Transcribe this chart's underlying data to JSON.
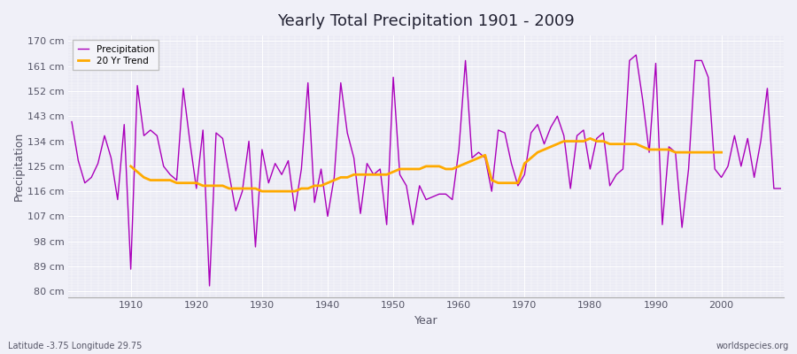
{
  "title": "Yearly Total Precipitation 1901 - 2009",
  "xlabel": "Year",
  "ylabel": "Precipitation",
  "subtitle": "Latitude -3.75 Longitude 29.75",
  "watermark": "worldspecies.org",
  "years": [
    1901,
    1902,
    1903,
    1904,
    1905,
    1906,
    1907,
    1908,
    1909,
    1910,
    1911,
    1912,
    1913,
    1914,
    1915,
    1916,
    1917,
    1918,
    1919,
    1920,
    1921,
    1922,
    1923,
    1924,
    1925,
    1926,
    1927,
    1928,
    1929,
    1930,
    1931,
    1932,
    1933,
    1934,
    1935,
    1936,
    1937,
    1938,
    1939,
    1940,
    1941,
    1942,
    1943,
    1944,
    1945,
    1946,
    1947,
    1948,
    1949,
    1950,
    1951,
    1952,
    1953,
    1954,
    1955,
    1956,
    1957,
    1958,
    1959,
    1960,
    1961,
    1962,
    1963,
    1964,
    1965,
    1966,
    1967,
    1968,
    1969,
    1970,
    1971,
    1972,
    1973,
    1974,
    1975,
    1976,
    1977,
    1978,
    1979,
    1980,
    1981,
    1982,
    1983,
    1984,
    1985,
    1986,
    1987,
    1988,
    1989,
    1990,
    1991,
    1992,
    1993,
    1994,
    1995,
    1996,
    1997,
    1998,
    1999,
    2000,
    2001,
    2002,
    2003,
    2004,
    2005,
    2006,
    2007,
    2008,
    2009
  ],
  "precipitation": [
    141,
    127,
    119,
    121,
    126,
    136,
    128,
    113,
    140,
    88,
    154,
    136,
    138,
    136,
    125,
    122,
    120,
    153,
    134,
    117,
    138,
    82,
    137,
    135,
    122,
    109,
    116,
    134,
    96,
    131,
    119,
    126,
    122,
    127,
    109,
    124,
    155,
    112,
    124,
    107,
    121,
    155,
    137,
    128,
    108,
    126,
    122,
    124,
    104,
    157,
    122,
    118,
    104,
    118,
    113,
    114,
    115,
    115,
    113,
    131,
    163,
    128,
    130,
    128,
    116,
    138,
    137,
    126,
    118,
    122,
    137,
    140,
    133,
    139,
    143,
    136,
    117,
    136,
    138,
    124,
    135,
    137,
    118,
    122,
    124,
    163,
    165,
    149,
    130,
    162,
    104,
    132,
    130,
    103,
    124,
    163,
    163,
    157,
    124,
    121,
    125,
    136,
    125,
    135,
    121,
    134,
    153,
    117,
    117
  ],
  "trend_years": [
    1910,
    1911,
    1912,
    1913,
    1914,
    1915,
    1916,
    1917,
    1918,
    1919,
    1920,
    1921,
    1922,
    1923,
    1924,
    1925,
    1926,
    1927,
    1928,
    1929,
    1930,
    1931,
    1932,
    1933,
    1934,
    1935,
    1936,
    1937,
    1938,
    1939,
    1940,
    1941,
    1942,
    1943,
    1944,
    1945,
    1946,
    1947,
    1948,
    1949,
    1950,
    1951,
    1952,
    1953,
    1954,
    1955,
    1956,
    1957,
    1958,
    1959,
    1960,
    1961,
    1962,
    1963,
    1964,
    1965,
    1966,
    1967,
    1968,
    1969,
    1970,
    1971,
    1972,
    1973,
    1974,
    1975,
    1976,
    1977,
    1978,
    1979,
    1980,
    1981,
    1982,
    1983,
    1984,
    1985,
    1986,
    1987,
    1988,
    1989,
    1990,
    1991,
    1992,
    1993,
    1994,
    1995,
    1996,
    1997,
    1998,
    1999,
    2000
  ],
  "trend_values": [
    125,
    123,
    121,
    120,
    120,
    120,
    120,
    119,
    119,
    119,
    119,
    118,
    118,
    118,
    118,
    117,
    117,
    117,
    117,
    117,
    116,
    116,
    116,
    116,
    116,
    116,
    117,
    117,
    118,
    118,
    119,
    120,
    121,
    121,
    122,
    122,
    122,
    122,
    122,
    122,
    123,
    124,
    124,
    124,
    124,
    125,
    125,
    125,
    124,
    124,
    125,
    126,
    127,
    128,
    129,
    120,
    119,
    119,
    119,
    119,
    126,
    128,
    130,
    131,
    132,
    133,
    134,
    134,
    134,
    134,
    135,
    134,
    134,
    133,
    133,
    133,
    133,
    133,
    132,
    131,
    131,
    131,
    131,
    130,
    130,
    130,
    130,
    130,
    130,
    130,
    130
  ],
  "precip_color": "#aa00bb",
  "trend_color": "#ffaa00",
  "bg_color": "#f0f0f8",
  "plot_bg_color": "#eaeaf4",
  "grid_color": "#ffffff",
  "tick_label_color": "#555566",
  "title_color": "#222233",
  "ylim": [
    78,
    172
  ],
  "yticks": [
    80,
    89,
    98,
    107,
    116,
    125,
    134,
    143,
    152,
    161,
    170
  ],
  "xlim": [
    1900.5,
    2009.5
  ]
}
